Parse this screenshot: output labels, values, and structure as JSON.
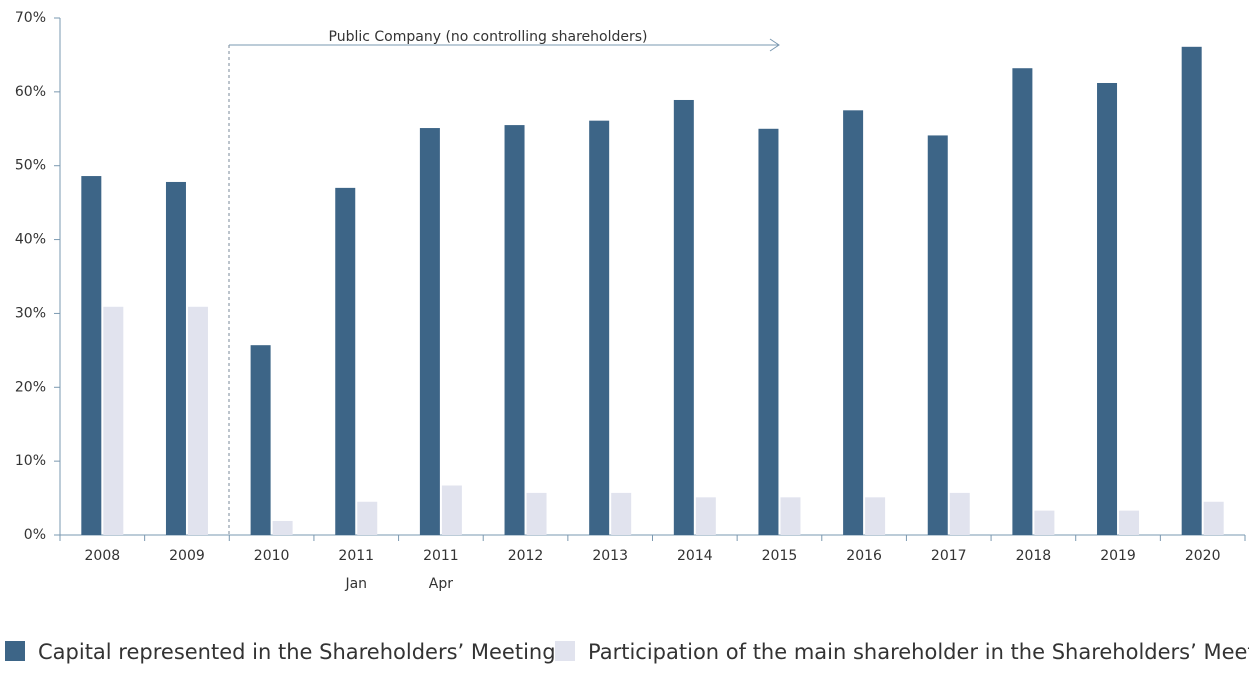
{
  "chart_data": {
    "type": "bar",
    "annotation": "Public Company (no controlling shareholders)",
    "categories": [
      [
        "2008"
      ],
      [
        "2009"
      ],
      [
        "2010"
      ],
      [
        "2011",
        "Jan"
      ],
      [
        "2011",
        "Apr"
      ],
      [
        "2012"
      ],
      [
        "2013"
      ],
      [
        "2014"
      ],
      [
        "2015"
      ],
      [
        "2016"
      ],
      [
        "2017"
      ],
      [
        "2018"
      ],
      [
        "2019"
      ],
      [
        "2020"
      ]
    ],
    "series": [
      {
        "name": "Capital represented in the Shareholders’ Meeting",
        "color": "#3d6587",
        "values": [
          48.6,
          47.8,
          25.7,
          47.0,
          55.1,
          55.5,
          56.1,
          58.9,
          55.0,
          57.5,
          54.1,
          63.2,
          61.2,
          66.1
        ]
      },
      {
        "name": "Participation of the main shareholder in the Shareholders’ Meeting",
        "color": "#e1e3ee",
        "values": [
          30.9,
          30.9,
          1.9,
          4.5,
          6.7,
          5.7,
          5.7,
          5.1,
          5.1,
          5.1,
          5.7,
          3.3,
          3.3,
          4.5
        ]
      }
    ],
    "ylim": [
      0,
      70
    ],
    "yticks": [
      {
        "value": 0,
        "label": "0%"
      },
      {
        "value": 10,
        "label": "10%"
      },
      {
        "value": 20,
        "label": "20%"
      },
      {
        "value": 30,
        "label": "30%"
      },
      {
        "value": 40,
        "label": "40%"
      },
      {
        "value": 50,
        "label": "50%"
      },
      {
        "value": 60,
        "label": "60%"
      },
      {
        "value": 70,
        "label": "70%"
      }
    ],
    "legend": "bottom"
  }
}
